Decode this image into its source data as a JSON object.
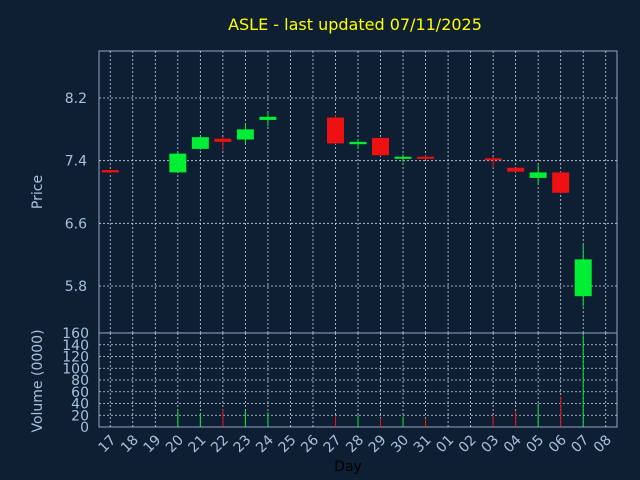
{
  "chart_data": {
    "type": "candlestick",
    "title": "ASLE - last updated 07/11/2025",
    "colors": {
      "background": "#0f1f33",
      "grid": "#c8d4e0",
      "frame": "#8fa8c2",
      "up": "#00ee33",
      "down": "#ee1111",
      "title": "#ffff00",
      "ticks": "#a6c0dd"
    },
    "price_panel": {
      "ylabel": "Price",
      "ylim": [
        5.2,
        8.8
      ],
      "yticks": [
        "8.2",
        "7.4",
        "6.6",
        "5.8"
      ],
      "ytick_values": [
        8.2,
        7.4,
        6.6,
        5.8
      ]
    },
    "volume_panel": {
      "ylabel": "Volume (0000)",
      "ylim": [
        0,
        160
      ],
      "yticks": [
        "160",
        "140",
        "120",
        "100",
        "80",
        "60",
        "40",
        "20",
        "0"
      ],
      "ytick_values": [
        160,
        140,
        120,
        100,
        80,
        60,
        40,
        20,
        0
      ]
    },
    "xlabel": "Day",
    "x_labels": [
      "17",
      "18",
      "19",
      "20",
      "21",
      "22",
      "23",
      "24",
      "25",
      "26",
      "27",
      "28",
      "29",
      "30",
      "31",
      "01",
      "02",
      "03",
      "04",
      "05",
      "06",
      "07",
      "08"
    ],
    "candles": [
      {
        "x": "17",
        "open": 7.28,
        "high": 7.28,
        "low": 7.24,
        "close": 7.25,
        "volume": 0
      },
      {
        "x": "20",
        "open": 7.25,
        "high": 7.52,
        "low": 7.25,
        "close": 7.49,
        "volume": 30
      },
      {
        "x": "21",
        "open": 7.55,
        "high": 7.71,
        "low": 7.54,
        "close": 7.7,
        "volume": 22
      },
      {
        "x": "22",
        "open": 7.68,
        "high": 7.7,
        "low": 7.53,
        "close": 7.64,
        "volume": 30
      },
      {
        "x": "23",
        "open": 7.67,
        "high": 7.86,
        "low": 7.62,
        "close": 7.8,
        "volume": 28
      },
      {
        "x": "24",
        "open": 7.92,
        "high": 8.02,
        "low": 7.84,
        "close": 7.96,
        "volume": 25
      },
      {
        "x": "27",
        "open": 7.95,
        "high": 7.98,
        "low": 7.61,
        "close": 7.62,
        "volume": 18
      },
      {
        "x": "28",
        "open": 7.61,
        "high": 7.68,
        "low": 7.55,
        "close": 7.64,
        "volume": 20
      },
      {
        "x": "29",
        "open": 7.69,
        "high": 7.69,
        "low": 7.46,
        "close": 7.47,
        "volume": 15
      },
      {
        "x": "30",
        "open": 7.43,
        "high": 7.48,
        "low": 7.38,
        "close": 7.45,
        "volume": 18
      },
      {
        "x": "31",
        "open": 7.45,
        "high": 7.47,
        "low": 7.41,
        "close": 7.43,
        "volume": 15
      },
      {
        "x": "03",
        "open": 7.43,
        "high": 7.45,
        "low": 7.31,
        "close": 7.41,
        "volume": 20
      },
      {
        "x": "04",
        "open": 7.31,
        "high": 7.31,
        "low": 7.25,
        "close": 7.26,
        "volume": 27
      },
      {
        "x": "05",
        "open": 7.18,
        "high": 7.34,
        "low": 7.09,
        "close": 7.25,
        "volume": 40
      },
      {
        "x": "06",
        "open": 7.25,
        "high": 7.26,
        "low": 6.98,
        "close": 6.99,
        "volume": 52
      },
      {
        "x": "07",
        "open": 5.67,
        "high": 6.33,
        "low": 5.54,
        "close": 6.14,
        "volume": 156
      }
    ]
  }
}
